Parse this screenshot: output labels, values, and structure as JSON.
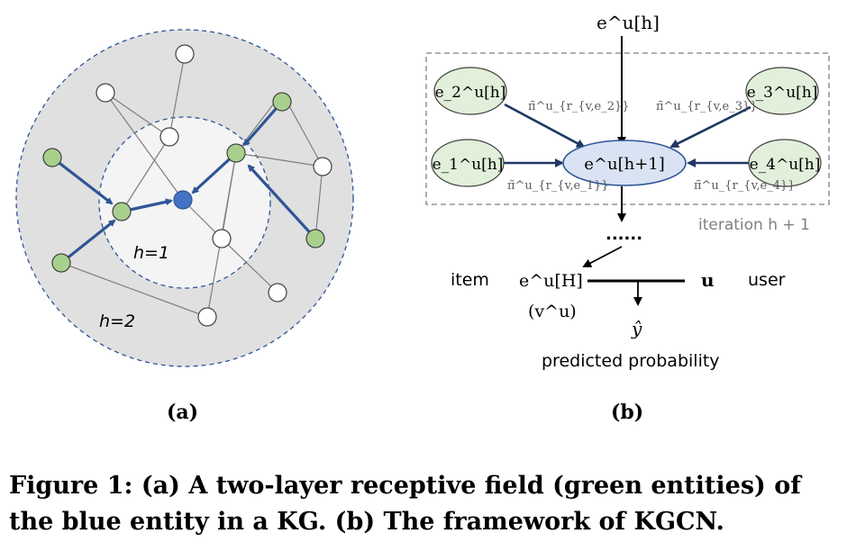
{
  "panel_a": {
    "label": "(a)",
    "inner_region_label": "h=1",
    "outer_region_label": "h=2"
  },
  "panel_b": {
    "label": "(b)",
    "input_label": "e^u[h]",
    "center_node": "e^u[h+1]",
    "neighbors": [
      "e_1^u[h]",
      "e_2^u[h]",
      "e_3^u[h]",
      "e_4^u[h]"
    ],
    "weights": [
      "π̃^u_{r_{v,e_1}}",
      "π̃^u_{r_{v,e_2}}",
      "π̃^u_{r_{v,e_3}}",
      "π̃^u_{r_{v,e_4}}"
    ],
    "iteration_label": "iteration h + 1",
    "ellipsis": "......",
    "item_label": "item",
    "final_item": "e^u[H]",
    "final_item_alias": "(v^u)",
    "user_vector": "u",
    "user_label": "user",
    "output": "ŷ",
    "output_label": "predicted probability"
  },
  "caption": {
    "prefix": "Figure 1:",
    "text": "(a) A two-layer receptive field (green entities) of the blue entity in a KG. (b) The framework of KGCN."
  },
  "colors": {
    "green_node": "#a8d08d",
    "blue_node": "#4472c4",
    "edge_blue": "#2f5597",
    "outer_fill": "#e0e0e0",
    "inner_fill": "#f4f4f4",
    "center_fill": "#dae3f3",
    "neighbor_fill": "#e2efda"
  }
}
